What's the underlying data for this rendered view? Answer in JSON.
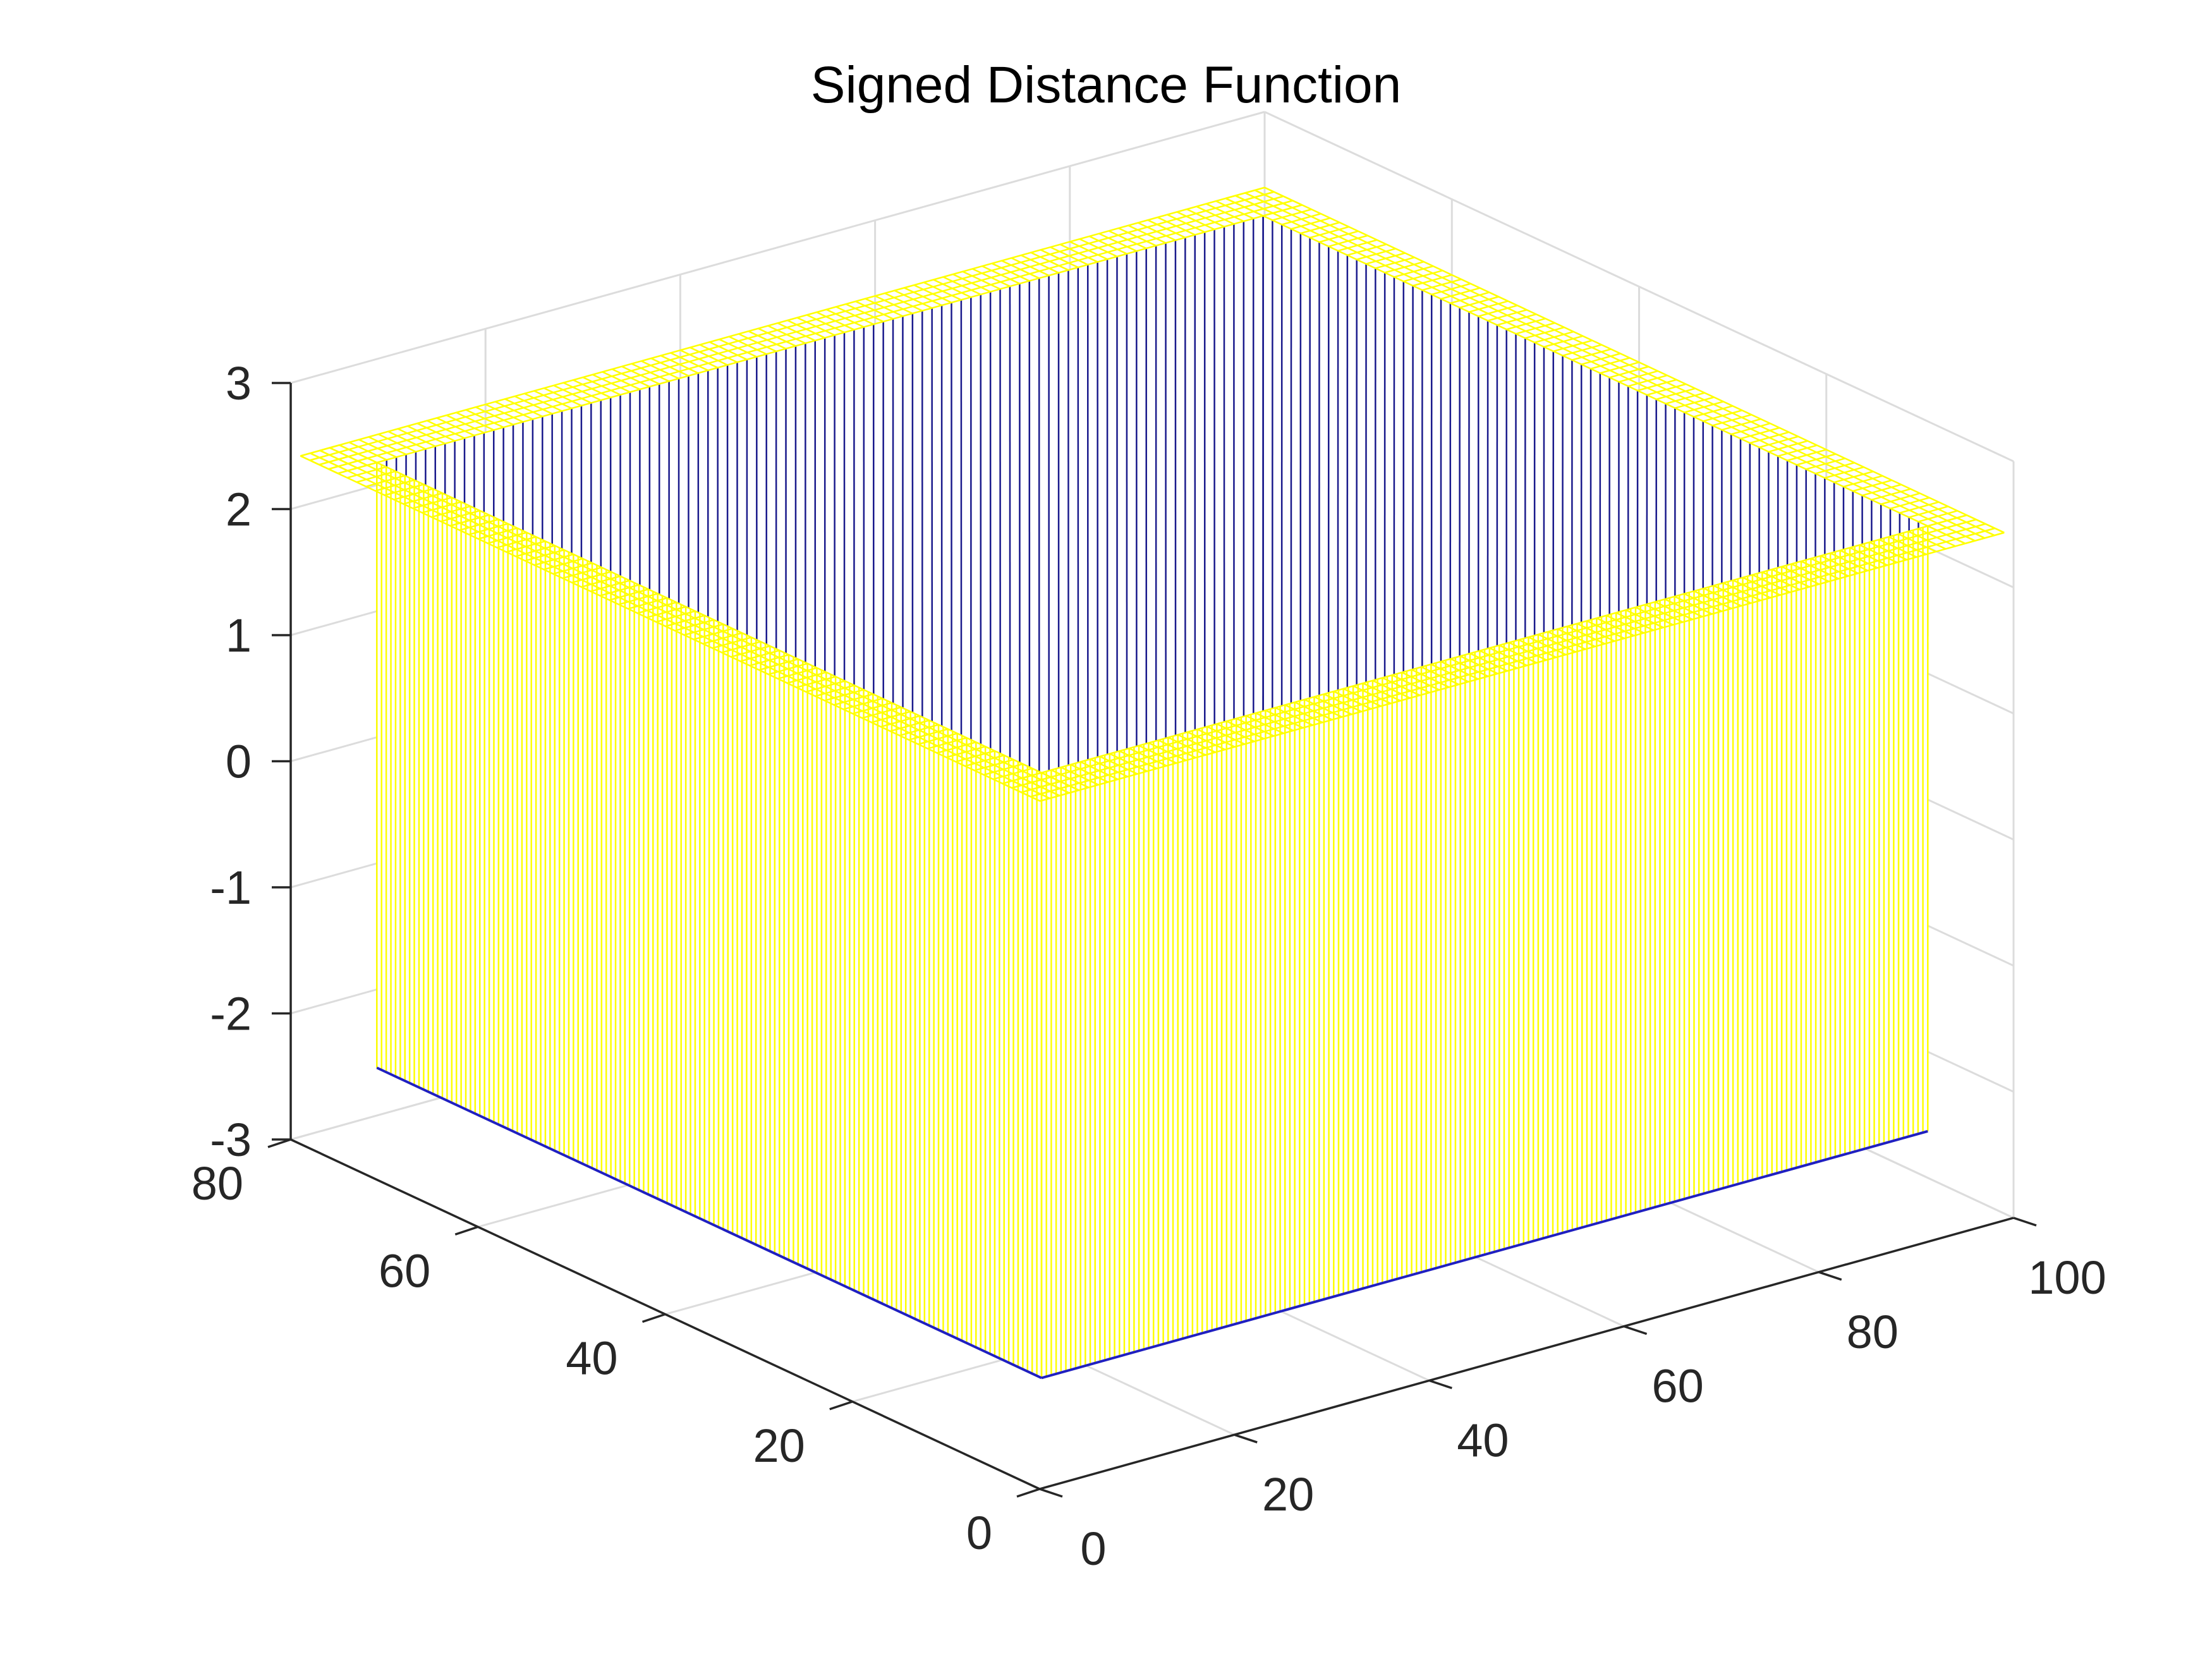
{
  "chart_data": {
    "type": "surface",
    "title": "Signed Distance Function",
    "xlabel": "",
    "ylabel": "",
    "zlabel": "",
    "x_range": [
      0,
      100
    ],
    "y_range": [
      0,
      80
    ],
    "z_range": [
      -3,
      3
    ],
    "x_ticks": [
      "0",
      "20",
      "40",
      "60",
      "80",
      "100"
    ],
    "y_ticks": [
      "0",
      "20",
      "40",
      "60",
      "80"
    ],
    "z_ticks": [
      "-3",
      "-2",
      "-1",
      "0",
      "1",
      "2",
      "3"
    ],
    "grid": true,
    "box": false,
    "view": "3d-default",
    "surface": {
      "outer_rim_x": [
        1,
        100
      ],
      "outer_rim_y": [
        1,
        80
      ],
      "inner_x": [
        5,
        96
      ],
      "inner_y": [
        5,
        76
      ],
      "rim_z": 2.4,
      "inner_top_z": 2.4,
      "floor_z": -2.4,
      "wall_color": "#ffff00",
      "inner_color": "#1a1a8c",
      "floor_color": "#2020c0"
    }
  }
}
